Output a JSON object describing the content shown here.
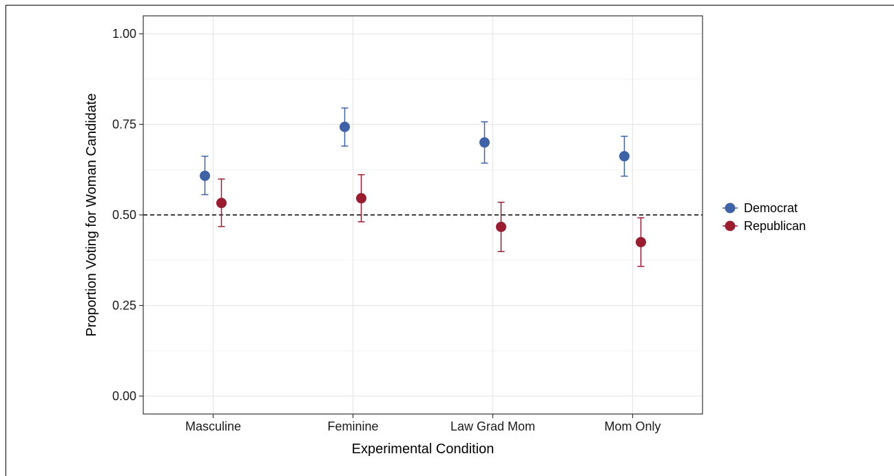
{
  "chart_data": {
    "type": "scatter",
    "title": "",
    "xlabel": "Experimental Condition",
    "ylabel": "Proportion Voting for Woman Candidate",
    "categories": [
      "Masculine",
      "Feminine",
      "Law Grad Mom",
      "Mom Only"
    ],
    "ylim": [
      0,
      1
    ],
    "yticks": [
      0,
      0.25,
      0.5,
      0.75,
      1
    ],
    "ytick_labels": [
      "0.00",
      "0.25",
      "0.50",
      "0.75",
      "1.00"
    ],
    "reference_line": 0.5,
    "grid": true,
    "legend_position": "right",
    "series": [
      {
        "name": "Democrat",
        "color": "#3d62a8",
        "values": [
          0.608,
          0.743,
          0.7,
          0.662
        ],
        "lower": [
          0.556,
          0.69,
          0.643,
          0.607
        ],
        "upper": [
          0.662,
          0.795,
          0.757,
          0.717
        ]
      },
      {
        "name": "Republican",
        "color": "#9b1c2e",
        "values": [
          0.533,
          0.546,
          0.467,
          0.425
        ],
        "lower": [
          0.468,
          0.481,
          0.399,
          0.358
        ],
        "upper": [
          0.599,
          0.611,
          0.535,
          0.492
        ]
      }
    ]
  }
}
